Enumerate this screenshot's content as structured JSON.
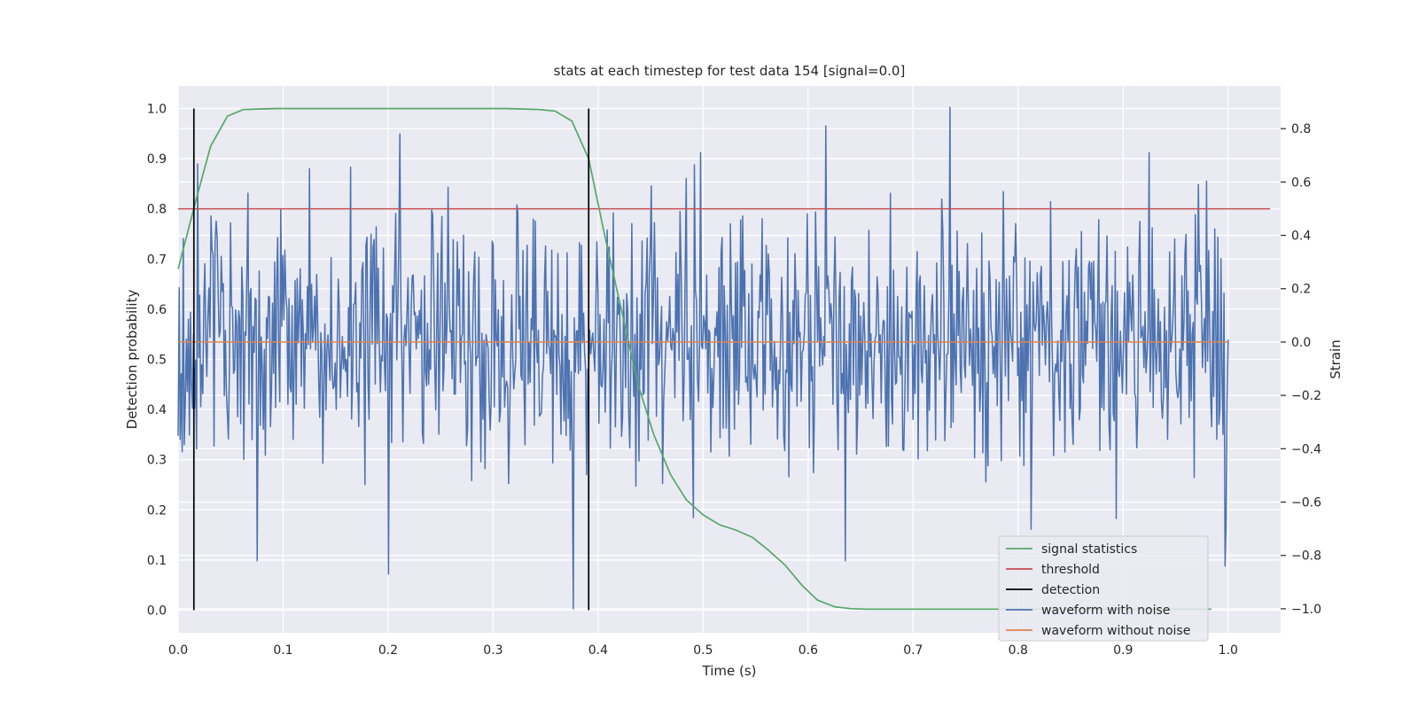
{
  "chart_data": {
    "type": "line",
    "title": "stats at each timestep for test data 154 [signal=0.0]",
    "xlabel": "Time (s)",
    "ylabel_left": "Detection probability",
    "ylabel_right": "Strain",
    "xlim": [
      0.0,
      1.05
    ],
    "ylim_left": [
      -0.045,
      1.045
    ],
    "ylim_right": [
      -1.09,
      0.96
    ],
    "x_ticks": [
      0.0,
      0.1,
      0.2,
      0.3,
      0.4,
      0.5,
      0.6,
      0.7,
      0.8,
      0.9,
      1.0
    ],
    "x_tick_labels": [
      "0.0",
      "0.1",
      "0.2",
      "0.3",
      "0.4",
      "0.5",
      "0.6",
      "0.7",
      "0.8",
      "0.9",
      "1.0"
    ],
    "y_left_ticks": [
      0.0,
      0.1,
      0.2,
      0.3,
      0.4,
      0.5,
      0.6,
      0.7,
      0.8,
      0.9,
      1.0
    ],
    "y_left_tick_labels": [
      "0.0",
      "0.1",
      "0.2",
      "0.3",
      "0.4",
      "0.5",
      "0.6",
      "0.7",
      "0.8",
      "0.9",
      "1.0"
    ],
    "y_right_ticks": [
      -1.0,
      -0.8,
      -0.6,
      -0.4,
      -0.2,
      0.0,
      0.2,
      0.4,
      0.6,
      0.8
    ],
    "y_right_tick_labels": [
      "−1.0",
      "−0.8",
      "−0.6",
      "−0.4",
      "−0.2",
      "0.0",
      "0.2",
      "0.4",
      "0.6",
      "0.8"
    ],
    "grid": true,
    "legend_position": "lower-right",
    "series": [
      {
        "name": "signal statistics",
        "color": "#55a868",
        "axis": "left",
        "x": [
          0.0,
          0.016,
          0.031,
          0.047,
          0.062,
          0.078,
          0.094,
          0.109,
          0.125,
          0.141,
          0.156,
          0.172,
          0.188,
          0.203,
          0.219,
          0.234,
          0.25,
          0.266,
          0.281,
          0.297,
          0.312,
          0.328,
          0.344,
          0.359,
          0.375,
          0.391,
          0.406,
          0.422,
          0.438,
          0.453,
          0.469,
          0.484,
          0.5,
          0.516,
          0.531,
          0.547,
          0.562,
          0.578,
          0.594,
          0.609,
          0.625,
          0.641,
          0.656,
          0.672,
          0.688,
          0.703,
          0.719,
          0.734,
          0.75,
          0.766,
          0.781,
          0.797,
          0.812,
          0.828,
          0.844,
          0.859,
          0.875,
          0.891,
          0.906,
          0.922,
          0.938,
          0.953,
          0.969,
          0.984
        ],
        "values": [
          0.68,
          0.81,
          0.925,
          0.985,
          0.998,
          0.999,
          1.0,
          1.0,
          1.0,
          1.0,
          1.0,
          1.0,
          1.0,
          1.0,
          1.0,
          1.0,
          1.0,
          1.0,
          1.0,
          1.0,
          1.0,
          0.999,
          0.998,
          0.995,
          0.975,
          0.9,
          0.75,
          0.6,
          0.45,
          0.35,
          0.27,
          0.22,
          0.19,
          0.17,
          0.16,
          0.145,
          0.12,
          0.09,
          0.05,
          0.02,
          0.007,
          0.003,
          0.002,
          0.002,
          0.002,
          0.002,
          0.002,
          0.002,
          0.002,
          0.002,
          0.002,
          0.002,
          0.002,
          0.002,
          0.002,
          0.002,
          0.002,
          0.002,
          0.002,
          0.002,
          0.002,
          0.002,
          0.002,
          0.002
        ]
      },
      {
        "name": "threshold",
        "color": "#c44e52",
        "axis": "left",
        "x": [
          0.0,
          1.04
        ],
        "values": [
          0.8,
          0.8
        ]
      },
      {
        "name": "detection",
        "color": "#000000",
        "axis": "left",
        "type": "vlines",
        "x": [
          0.015,
          0.391
        ],
        "ymin": 0.0,
        "ymax": 1.0
      },
      {
        "name": "waveform with noise",
        "color": "#4c72b0",
        "axis": "right",
        "x_start": 0.0,
        "x_end": 1.0,
        "count": 1024,
        "peaks": [
          {
            "x": 0.376,
            "value": -1.0
          },
          {
            "x": 0.735,
            "value": 0.88
          },
          {
            "x": 0.617,
            "value": 0.81
          },
          {
            "x": 0.498,
            "value": 0.71
          },
          {
            "x": 0.925,
            "value": 0.71
          },
          {
            "x": 0.125,
            "value": 0.65
          },
          {
            "x": 0.2,
            "value": -0.87
          },
          {
            "x": 0.635,
            "value": -0.82
          },
          {
            "x": 0.997,
            "value": -0.84
          },
          {
            "x": 0.075,
            "value": -0.82
          }
        ]
      },
      {
        "name": "waveform without noise",
        "color": "#dd8452",
        "axis": "right",
        "x": [
          0.0,
          1.0
        ],
        "values": [
          0.0,
          0.0
        ]
      }
    ]
  }
}
